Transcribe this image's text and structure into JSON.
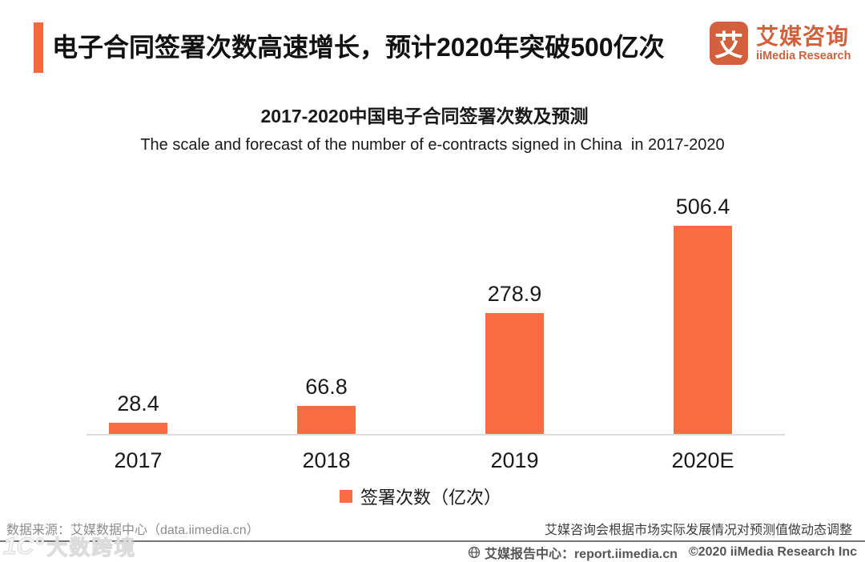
{
  "header": {
    "title": "电子合同签署次数高速增长，预计2020年突破500亿次",
    "logo": {
      "glyph": "艾",
      "name_cn": "艾媒咨询",
      "name_en": "iiMedia Research"
    }
  },
  "chart_data": {
    "type": "bar",
    "title": "2017-2020中国电子合同签署次数及预测",
    "subtitle": "The scale and forecast of the number of e-contracts signed in China  in 2017-2020",
    "categories": [
      "2017",
      "2018",
      "2019",
      "2020E"
    ],
    "values": [
      28.4,
      66.8,
      278.9,
      506.4
    ],
    "series_name": "签署次数（亿次）",
    "unit": "亿次",
    "ylim": [
      0,
      550
    ],
    "grid": false,
    "legend_position": "bottom",
    "bar_color": "#FA6C42"
  },
  "notes": {
    "source": "数据来源：艾媒数据中心（data.iimedia.cn）",
    "forecast": "艾媒咨询会根据市场实际发展情况对预测值做动态调整"
  },
  "footer": {
    "report_center": "艾媒报告中心：report.iimedia.cn",
    "copyright": "©2020 iiMedia Research Inc"
  },
  "watermark": {
    "icon": "1C°",
    "text": "大数跨境"
  },
  "colors": {
    "accent": "#F4683C",
    "bar": "#FA6C42",
    "logo": "#D2603C",
    "axis_line": "#DCDCDC",
    "footer_line": "#757575"
  }
}
